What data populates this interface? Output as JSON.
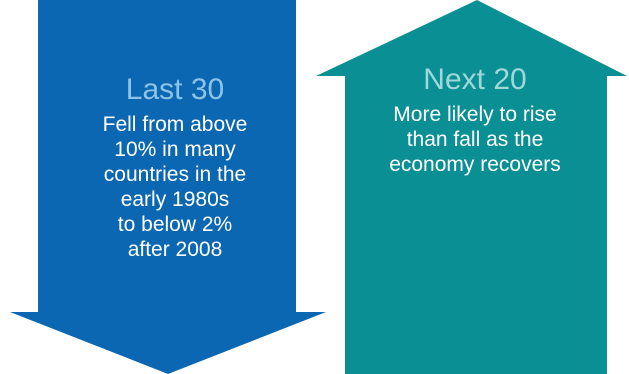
{
  "colors": {
    "down_arrow_fill": "#0b67b2",
    "up_arrow_fill": "#0a8f95",
    "down_heading": "#8ec3e8",
    "up_heading": "#9ed8d8",
    "text": "#ffffff"
  },
  "down_arrow": {
    "heading": "Last 30",
    "lines": [
      "Fell from above",
      "10% in many",
      "countries in the",
      "early 1980s",
      "to below 2%",
      "after 2008"
    ]
  },
  "up_arrow": {
    "heading": "Next 20",
    "lines": [
      "More likely to rise",
      "than fall as the",
      "economy recovers"
    ]
  }
}
